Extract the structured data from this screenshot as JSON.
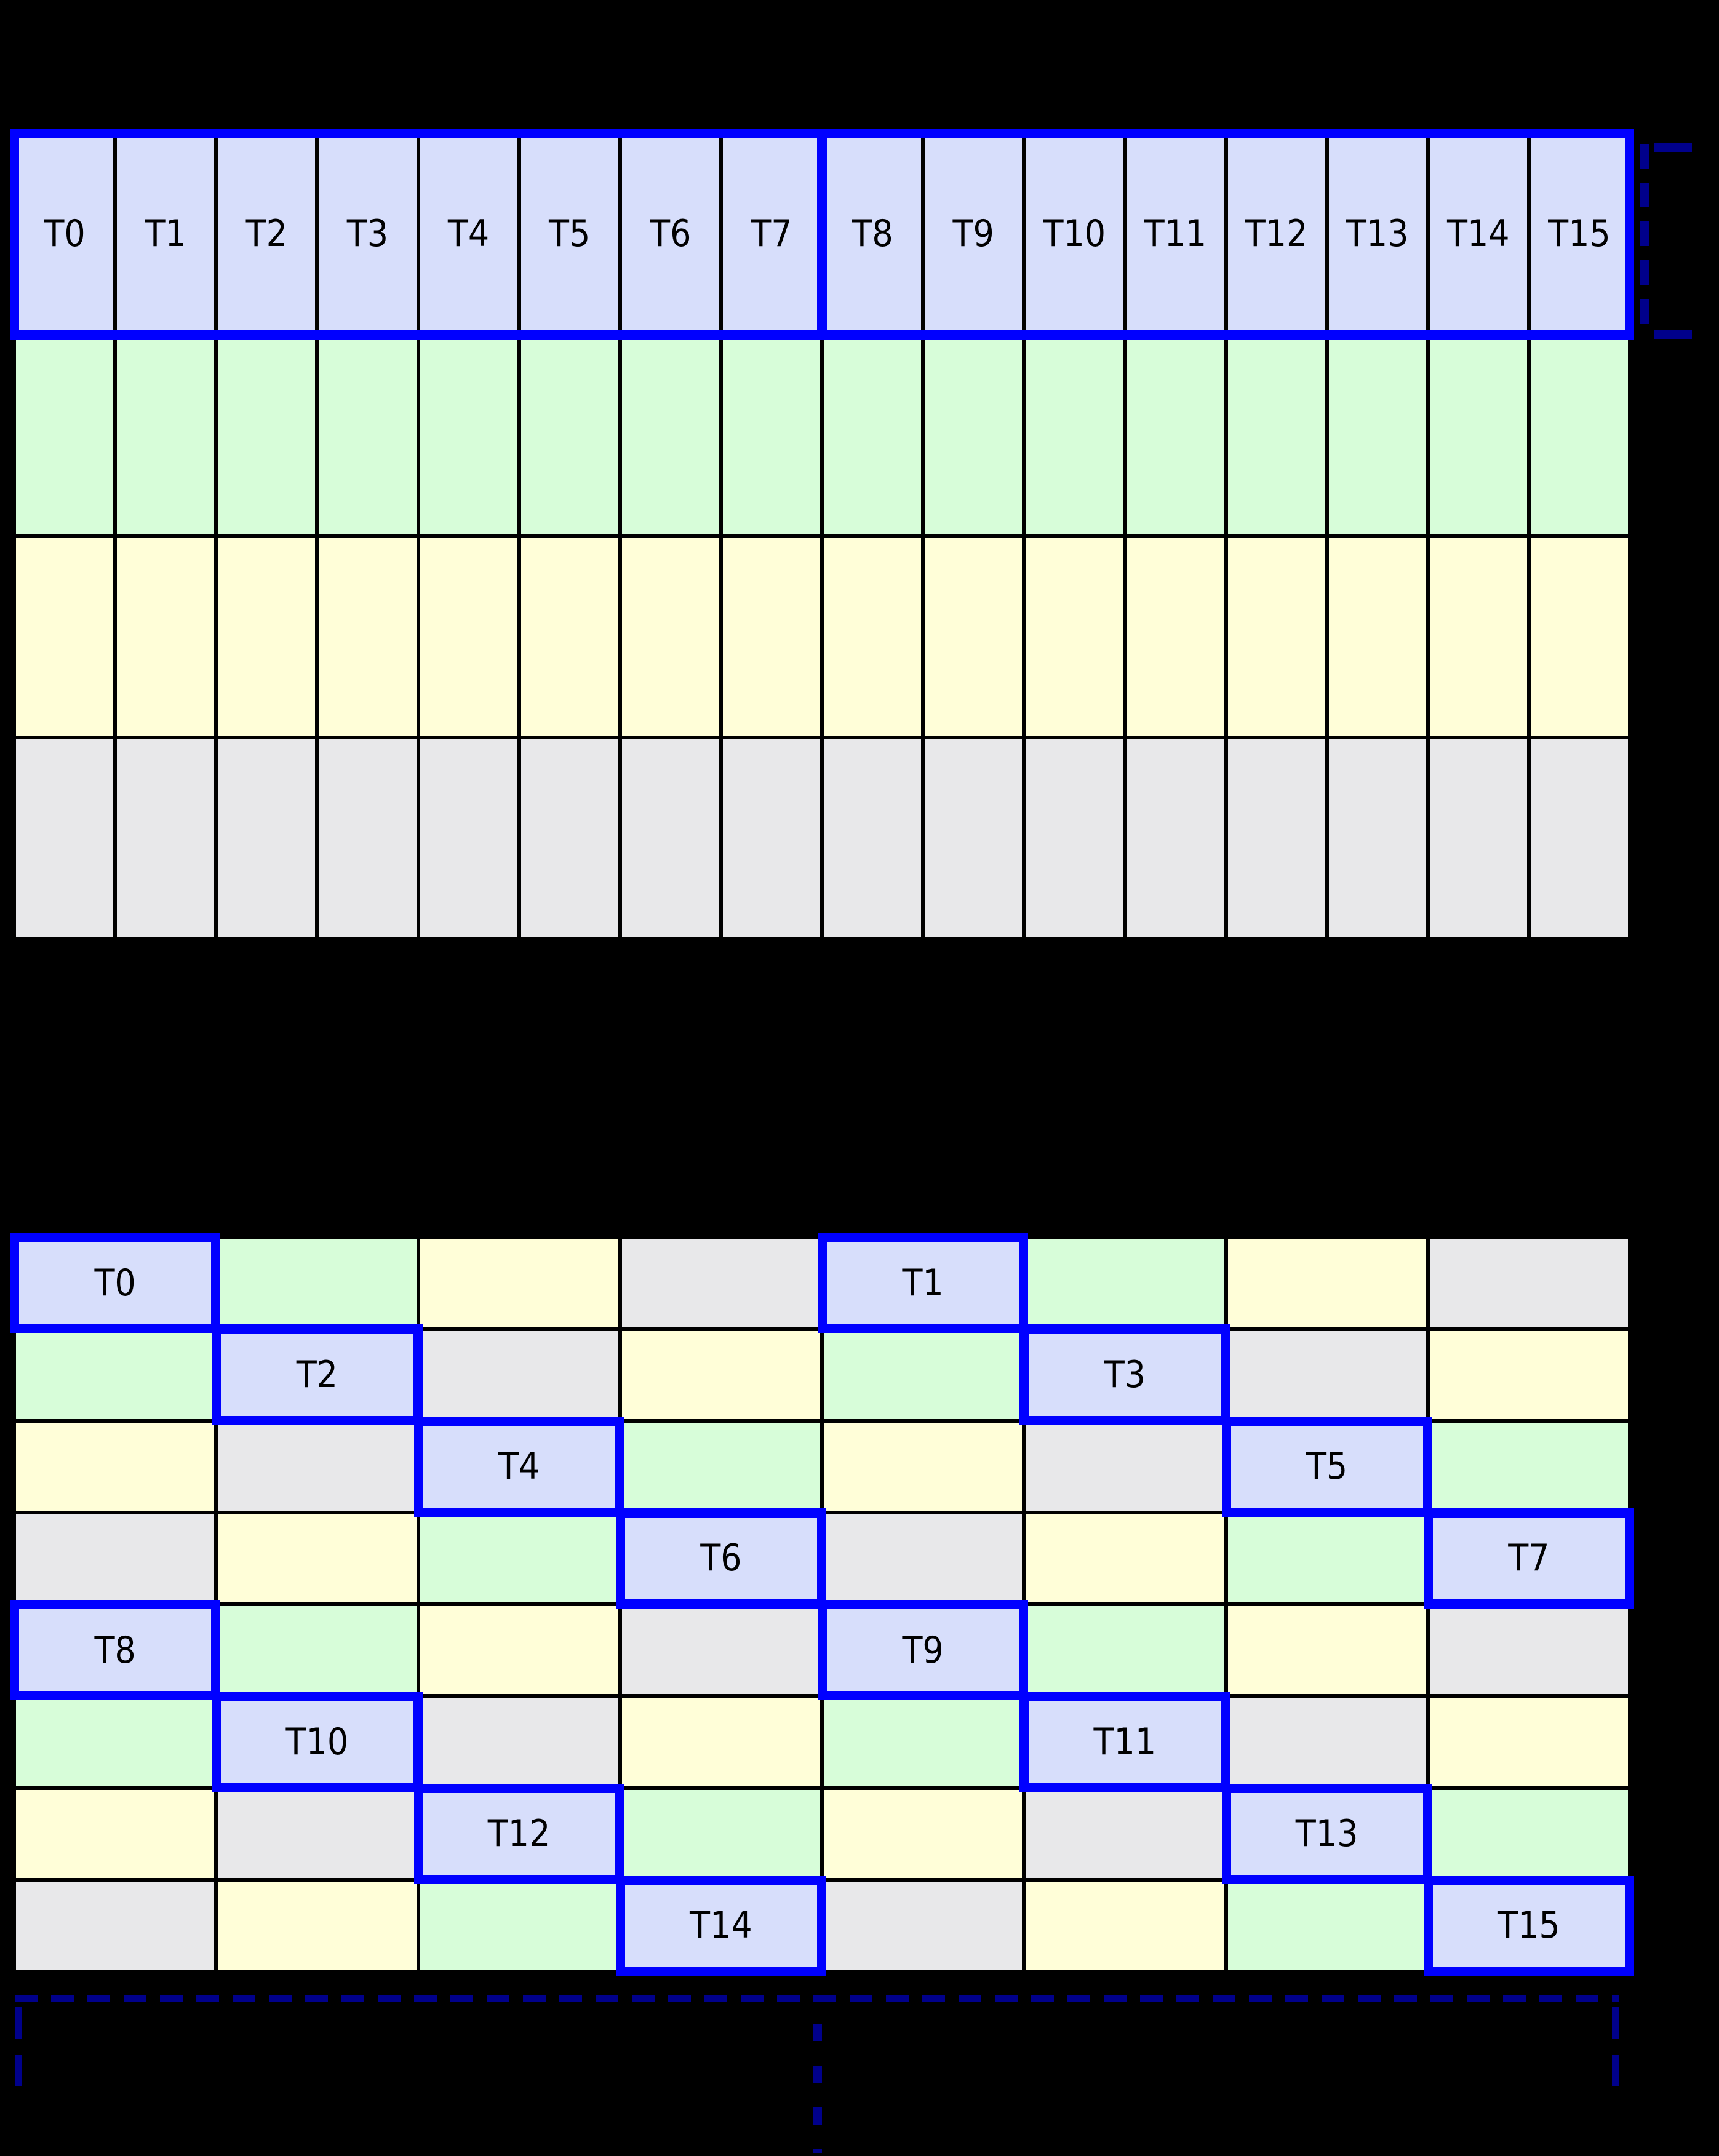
{
  "colors": {
    "background": "#000000",
    "gridline": "#000000",
    "thread_cell": "#d7defb",
    "green_cell": "#d7fdd9",
    "yellow_cell": "#fffed8",
    "gray_cell": "#e8e8ea",
    "warp_border_blue": "#0000ff",
    "annotation_navy": "#00008b",
    "label_text": "#000000"
  },
  "top_grid": {
    "cols": 16,
    "rows": 4,
    "thread_labels": [
      "T0",
      "T1",
      "T2",
      "T3",
      "T4",
      "T5",
      "T6",
      "T7",
      "T8",
      "T9",
      "T10",
      "T11",
      "T12",
      "T13",
      "T14",
      "T15"
    ],
    "row_colors": [
      "thread",
      "green",
      "yellow",
      "gray"
    ],
    "half_warp_divider_after_col": 8
  },
  "bottom_grid": {
    "cols": 8,
    "rows": 8,
    "cells": [
      [
        "T0",
        "green",
        "yellow",
        "gray",
        "T1",
        "green",
        "yellow",
        "gray"
      ],
      [
        "green",
        "T2",
        "gray",
        "yellow",
        "green",
        "T3",
        "gray",
        "yellow"
      ],
      [
        "yellow",
        "gray",
        "T4",
        "green",
        "yellow",
        "gray",
        "T5",
        "green"
      ],
      [
        "gray",
        "yellow",
        "green",
        "T6",
        "gray",
        "yellow",
        "green",
        "T7"
      ],
      [
        "T8",
        "green",
        "yellow",
        "gray",
        "T9",
        "green",
        "yellow",
        "gray"
      ],
      [
        "green",
        "T10",
        "gray",
        "yellow",
        "green",
        "T11",
        "gray",
        "yellow"
      ],
      [
        "yellow",
        "gray",
        "T12",
        "green",
        "yellow",
        "gray",
        "T13",
        "green"
      ],
      [
        "gray",
        "yellow",
        "green",
        "T14",
        "gray",
        "yellow",
        "green",
        "T15"
      ]
    ]
  },
  "annotations": {
    "warp_row_bracket_icon": "dashed-bracket-right-of-thread-row",
    "iteration_span_bracket_icon": "dashed-underline-with-end-ticks-below-grid",
    "continuation_ellipsis_icon": "vertical-dashed-continuation-line",
    "color": "#00008b"
  }
}
